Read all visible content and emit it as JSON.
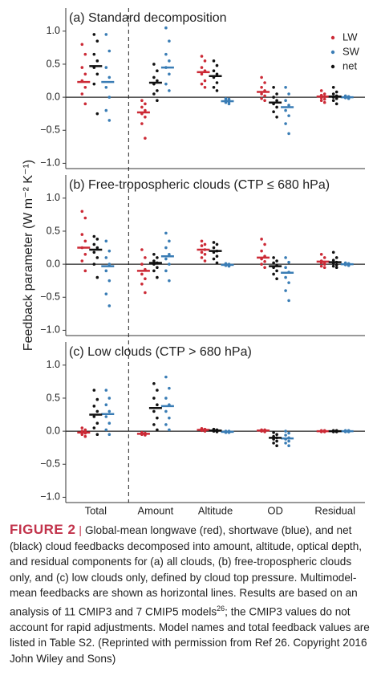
{
  "chart_data": [
    {
      "type": "strip",
      "title": "(a) Standard decomposition",
      "ylim": [
        -1.08,
        1.35
      ],
      "yticks": [
        {
          "value": 1.0,
          "label": "1.0"
        },
        {
          "value": 0.5,
          "label": "0.5"
        },
        {
          "value": 0.0,
          "label": "0.0"
        },
        {
          "value": -0.5,
          "label": "−0.5"
        },
        {
          "value": -1.0,
          "label": "−1.0"
        }
      ],
      "legend": "upper right",
      "series": [
        {
          "name": "LW",
          "color": "#cc2a36",
          "values": [
            [
              0.8,
              0.65,
              0.45,
              0.35,
              0.25,
              0.15,
              0.05,
              -0.1
            ],
            [
              -0.05,
              -0.1,
              -0.15,
              -0.2,
              -0.25,
              -0.3,
              -0.4,
              -0.62
            ],
            [
              0.62,
              0.55,
              0.45,
              0.4,
              0.35,
              0.25,
              0.2,
              0.15
            ],
            [
              0.3,
              0.22,
              0.15,
              0.1,
              0.05,
              0.02,
              -0.02,
              -0.05
            ],
            [
              0.1,
              0.05,
              0.03,
              0.01,
              -0.01,
              -0.03,
              -0.05,
              -0.08
            ]
          ],
          "means": [
            0.23,
            -0.23,
            0.38,
            0.08,
            0.01
          ]
        },
        {
          "name": "SW",
          "color": "#3a7db5",
          "values": [
            [
              0.95,
              0.7,
              0.45,
              0.3,
              0.15,
              0.0,
              -0.2,
              -0.35
            ],
            [
              1.05,
              0.85,
              0.65,
              0.55,
              0.45,
              0.35,
              0.2,
              0.1
            ],
            [
              -0.02,
              -0.03,
              -0.04,
              -0.05,
              -0.06,
              -0.07,
              -0.08,
              -0.1
            ],
            [
              0.15,
              0.05,
              -0.05,
              -0.12,
              -0.2,
              -0.28,
              -0.4,
              -0.55
            ],
            [
              0.02,
              0.01,
              0.01,
              0,
              0,
              -0.01,
              -0.01,
              -0.02
            ]
          ],
          "means": [
            0.23,
            0.45,
            -0.06,
            -0.15,
            0.0
          ]
        },
        {
          "name": "net",
          "color": "#111111",
          "values": [
            [
              0.95,
              0.85,
              0.65,
              0.55,
              0.45,
              0.35,
              0.2,
              -0.25
            ],
            [
              0.5,
              0.4,
              0.3,
              0.25,
              0.2,
              0.1,
              0.05,
              -0.05
            ],
            [
              0.55,
              0.48,
              0.4,
              0.35,
              0.3,
              0.22,
              0.15,
              0.1
            ],
            [
              0.15,
              0.05,
              0.0,
              -0.05,
              -0.1,
              -0.15,
              -0.22,
              -0.3
            ],
            [
              0.15,
              0.08,
              0.05,
              0.02,
              0.0,
              -0.02,
              -0.05,
              -0.1
            ]
          ],
          "means": [
            0.47,
            0.22,
            0.32,
            -0.08,
            0.01
          ]
        }
      ]
    },
    {
      "type": "strip",
      "title": "(b) Free-tropospheric clouds (CTP ≤ 680 hPa)",
      "ylim": [
        -1.08,
        1.35
      ],
      "yticks": [
        {
          "value": 1.0,
          "label": "1.0"
        },
        {
          "value": 0.5,
          "label": "0.5"
        },
        {
          "value": 0.0,
          "label": "0.0"
        },
        {
          "value": -0.5,
          "label": "−0.5"
        },
        {
          "value": -1.0,
          "label": "−1.0"
        }
      ],
      "series": [
        {
          "name": "LW",
          "color": "#cc2a36",
          "values": [
            [
              0.8,
              0.7,
              0.45,
              0.35,
              0.25,
              0.15,
              0.05,
              -0.1
            ],
            [
              0.22,
              0.1,
              0.0,
              -0.08,
              -0.15,
              -0.22,
              -0.3,
              -0.43
            ],
            [
              0.35,
              0.3,
              0.28,
              0.22,
              0.18,
              0.15,
              0.1,
              0.05
            ],
            [
              0.38,
              0.3,
              0.2,
              0.12,
              0.08,
              0.04,
              0.0,
              -0.05
            ],
            [
              0.15,
              0.1,
              0.05,
              0.03,
              0.02,
              0.0,
              -0.03,
              -0.05
            ]
          ],
          "means": [
            0.25,
            -0.1,
            0.22,
            0.1,
            0.04
          ]
        },
        {
          "name": "SW",
          "color": "#3a7db5",
          "values": [
            [
              0.35,
              0.2,
              0.1,
              0.0,
              -0.1,
              -0.25,
              -0.45,
              -0.63
            ],
            [
              0.47,
              0.35,
              0.25,
              0.15,
              0.08,
              0.0,
              -0.1,
              -0.25
            ],
            [
              0.01,
              0,
              0,
              -0.01,
              -0.01,
              -0.02,
              -0.02,
              -0.03
            ],
            [
              0.1,
              0.03,
              -0.05,
              -0.12,
              -0.2,
              -0.28,
              -0.4,
              -0.55
            ],
            [
              0.02,
              0.01,
              0.01,
              0,
              0,
              -0.01,
              -0.01,
              -0.02
            ]
          ],
          "means": [
            -0.03,
            0.12,
            -0.01,
            -0.13,
            0.0
          ]
        },
        {
          "name": "net",
          "color": "#111111",
          "values": [
            [
              0.42,
              0.38,
              0.3,
              0.25,
              0.18,
              0.1,
              0.0,
              -0.2
            ],
            [
              0.15,
              0.1,
              0.05,
              0.02,
              0.0,
              -0.05,
              -0.1,
              -0.2
            ],
            [
              0.33,
              0.3,
              0.25,
              0.2,
              0.18,
              0.12,
              0.08,
              0.02
            ],
            [
              0.1,
              0.05,
              0.02,
              -0.02,
              -0.05,
              -0.1,
              -0.15,
              -0.22
            ],
            [
              0.18,
              0.1,
              0.06,
              0.03,
              0.01,
              -0.01,
              -0.03,
              -0.05
            ]
          ],
          "means": [
            0.22,
            0.02,
            0.2,
            -0.03,
            0.03
          ]
        }
      ]
    },
    {
      "type": "strip",
      "title": "(c) Low clouds (CTP > 680 hPa)",
      "ylim": [
        -1.08,
        1.35
      ],
      "yticks": [
        {
          "value": 1.0,
          "label": "1.0"
        },
        {
          "value": 0.5,
          "label": "0.5"
        },
        {
          "value": 0.0,
          "label": "0.0"
        },
        {
          "value": -0.5,
          "label": "−0.5"
        },
        {
          "value": -1.0,
          "label": "−1.0"
        }
      ],
      "series": [
        {
          "name": "LW",
          "color": "#cc2a36",
          "values": [
            [
              0.05,
              0.02,
              0.0,
              -0.01,
              -0.02,
              -0.03,
              -0.05,
              -0.08
            ],
            [
              -0.02,
              -0.03,
              -0.03,
              -0.04,
              -0.04,
              -0.05,
              -0.05,
              -0.06
            ],
            [
              0.04,
              0.03,
              0.03,
              0.02,
              0.02,
              0.01,
              0.01,
              0.0
            ],
            [
              0.02,
              0.02,
              0.01,
              0.01,
              0.01,
              0.0,
              0.0,
              -0.01
            ],
            [
              0.01,
              0.01,
              0,
              0,
              0,
              0,
              -0.01,
              -0.01
            ]
          ],
          "means": [
            -0.02,
            -0.04,
            0.02,
            0.01,
            0.0
          ]
        },
        {
          "name": "SW",
          "color": "#3a7db5",
          "values": [
            [
              0.62,
              0.5,
              0.4,
              0.3,
              0.22,
              0.12,
              0.02,
              -0.05
            ],
            [
              0.82,
              0.65,
              0.5,
              0.4,
              0.3,
              0.2,
              0.1,
              0.02
            ],
            [
              0.0,
              0.0,
              -0.01,
              -0.01,
              -0.01,
              -0.01,
              -0.02,
              -0.02
            ],
            [
              0.0,
              -0.03,
              -0.06,
              -0.1,
              -0.12,
              -0.15,
              -0.18,
              -0.22
            ],
            [
              0.01,
              0.01,
              0,
              0,
              0,
              0,
              -0.01,
              -0.01
            ]
          ],
          "means": [
            0.26,
            0.38,
            -0.01,
            -0.11,
            0.0
          ]
        },
        {
          "name": "net",
          "color": "#111111",
          "values": [
            [
              0.62,
              0.48,
              0.38,
              0.3,
              0.22,
              0.12,
              0.05,
              -0.05
            ],
            [
              0.72,
              0.62,
              0.5,
              0.4,
              0.3,
              0.2,
              0.1,
              0.02
            ],
            [
              0.03,
              0.02,
              0.02,
              0.01,
              0.01,
              0.0,
              0.0,
              -0.01
            ],
            [
              -0.02,
              -0.05,
              -0.08,
              -0.1,
              -0.12,
              -0.15,
              -0.18,
              -0.22
            ],
            [
              0.01,
              0.01,
              0,
              0,
              0,
              0,
              -0.01,
              -0.01
            ]
          ],
          "means": [
            0.25,
            0.35,
            0.01,
            -0.1,
            0.0
          ]
        }
      ]
    }
  ],
  "categories": [
    "Total",
    "Amount",
    "Altitude",
    "OD",
    "Residual"
  ],
  "ylabel": "Feedback parameter (W m⁻² K⁻¹)",
  "caption": {
    "label": "FIGURE 2",
    "separator": "|",
    "text1": "Global-mean longwave (red), shortwave (blue), and net (black) cloud feedbacks decomposed into amount, altitude, optical depth, and residual components for (a) all clouds, (b) free-tropospheric clouds only, and (c) low clouds only, defined by cloud top pressure. Multimodel-mean feedbacks are shown as horizontal lines. Results are based on an analysis of 11 CMIP3 and 7 CMIP5 models",
    "superscript": "26",
    "text2": "; the CMIP3 values do not account for rapid adjustments. Model names and total feedback values are listed in Table S2. (Reprinted with permission from Ref 26. Copyright 2016 John Wiley and Sons)"
  }
}
